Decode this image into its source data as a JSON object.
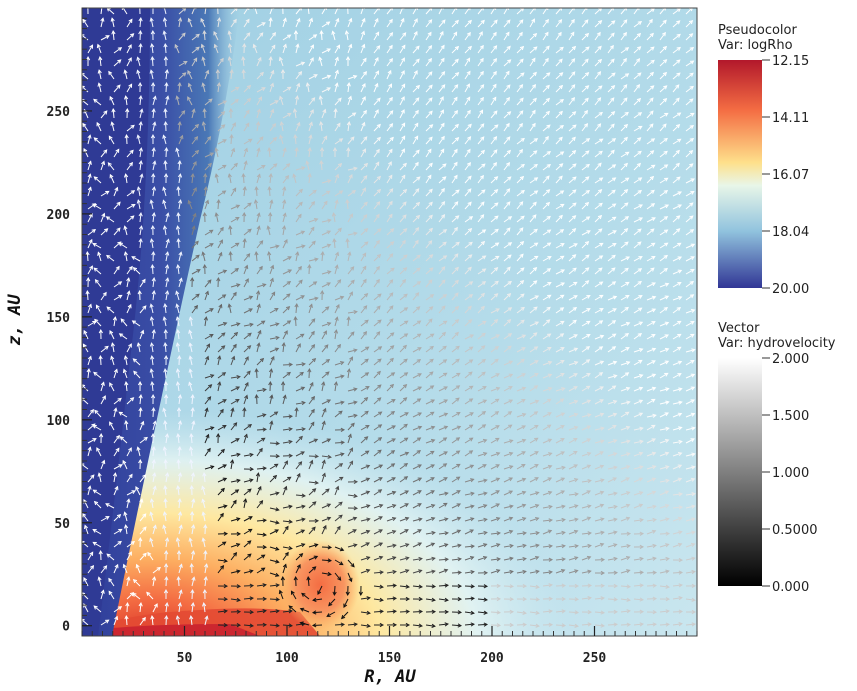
{
  "chart_data": {
    "type": "heatmap",
    "title": "",
    "xlabel": "R, AU",
    "ylabel": "z, AU",
    "xlim": [
      0,
      300
    ],
    "ylim": [
      -5,
      300
    ],
    "x_ticks": [
      50,
      100,
      150,
      200,
      250
    ],
    "y_ticks": [
      0,
      50,
      100,
      150,
      200,
      250
    ],
    "x_minor_step": 5,
    "y_minor_step": 5,
    "grid": false,
    "legend_placement": "right",
    "pseudocolor": {
      "title": "Pseudocolor",
      "var": "Var: logRho",
      "ticks": [
        "12.15",
        "14.11",
        "16.07",
        "18.04",
        "20.00"
      ],
      "colors": [
        "#b2182b",
        "#f46d43",
        "#fee08b",
        "#e0f3f8",
        "#74add1",
        "#313695"
      ]
    },
    "vector": {
      "title": "Vector",
      "var": "Var: hydrovelocity",
      "ticks": [
        "2.000",
        "1.500",
        "1.000",
        "0.5000",
        "0.000"
      ],
      "colors": [
        "#ffffff",
        "#000000"
      ]
    },
    "regions": [
      {
        "name": "low-density polar outflow",
        "logRho": -20.0
      },
      {
        "name": "dense disk midplane",
        "logRho": -12.15
      },
      {
        "name": "vortex",
        "x": 115,
        "y": 15
      }
    ]
  }
}
